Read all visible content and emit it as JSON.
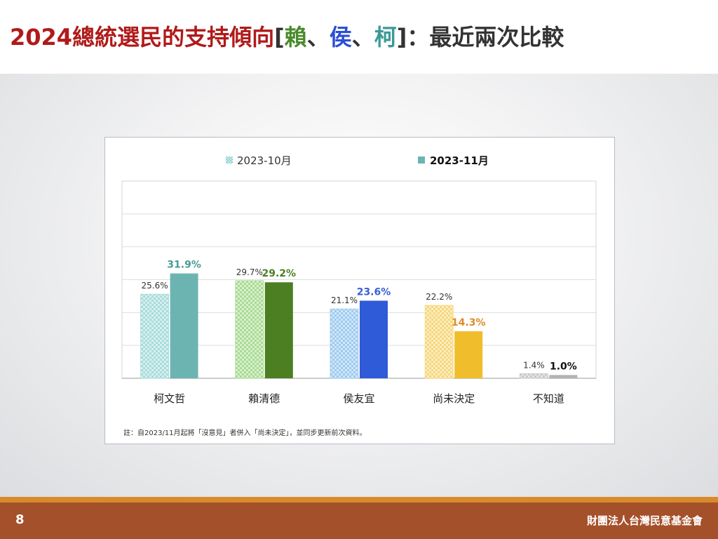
{
  "slide": {
    "title_parts": {
      "prefix": "2024總統選民的支持傾向",
      "bracket_open": "[",
      "lai": "賴",
      "sep1": "、",
      "hou": "侯",
      "sep2": "、",
      "ko": "柯",
      "suffix": "]：最近兩次比較"
    },
    "page_number": "8",
    "organization": "財團法人台灣民意基金會"
  },
  "colors": {
    "title_red": "#b01a1a",
    "title_dark": "#333333",
    "lai_green": "#4a8a2a",
    "hou_blue": "#2b4fd6",
    "ko_teal": "#3b9a96"
  },
  "chart_data": {
    "type": "bar",
    "categories": [
      "柯文哲",
      "賴清德",
      "侯友宜",
      "尚未決定",
      "不知道"
    ],
    "series": [
      {
        "name": "2023-10月",
        "values": [
          25.6,
          29.7,
          21.1,
          22.2,
          1.4
        ],
        "labels": [
          "25.6%",
          "29.7%",
          "21.1%",
          "22.2%",
          "1.4%"
        ],
        "pattern": "hatched",
        "colors": [
          "#a6dcda",
          "#a8dc92",
          "#9ccaf0",
          "#f6d77a",
          "#c8c8c8"
        ]
      },
      {
        "name": "2023-11月",
        "values": [
          31.9,
          29.2,
          23.6,
          14.3,
          1.0
        ],
        "labels": [
          "31.9%",
          "29.2%",
          "23.6%",
          "14.3%",
          "1.0%"
        ],
        "pattern": "solid",
        "colors": [
          "#6cb4b1",
          "#4b7f22",
          "#2f5ad8",
          "#f0bd2c",
          "#b3b3b3"
        ],
        "label_colors": [
          "#4a9a96",
          "#4b7f22",
          "#3a5fd6",
          "#e08a28",
          "#111111"
        ]
      }
    ],
    "ylim": [
      0,
      60
    ],
    "grid": true,
    "legend_position": "top",
    "note": "註：自2023/11月起將「沒意見」者併入「尚未決定」，並同步更新前次資料。"
  }
}
